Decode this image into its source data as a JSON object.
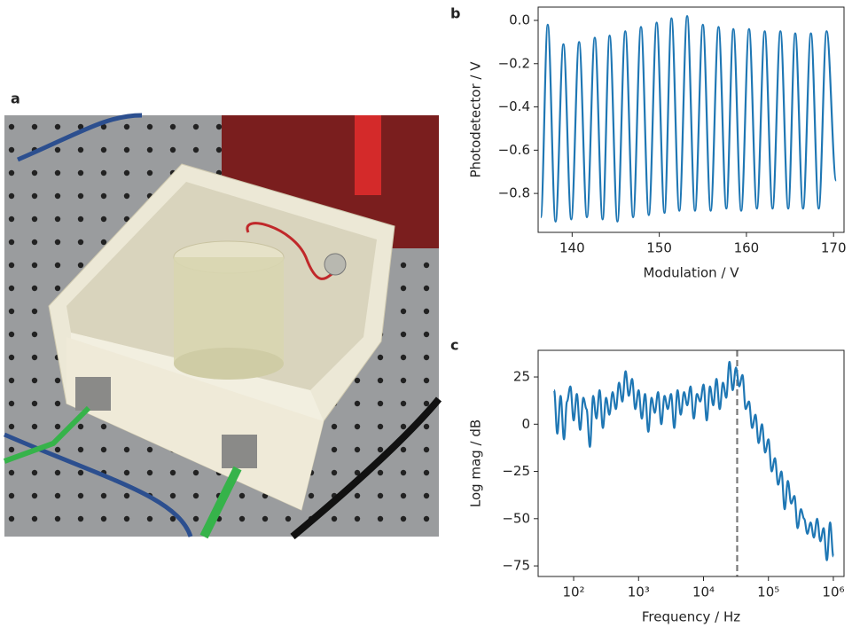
{
  "panel_labels": [
    "a",
    "b",
    "c"
  ],
  "chart_data": [
    {
      "type": "line",
      "xlabel": "Modulation / V",
      "ylabel": "Photodetector / V",
      "color": "#1f77b4",
      "x": [
        136.4,
        137.2,
        138.1,
        139.0,
        139.9,
        140.8,
        141.7,
        142.6,
        143.5,
        144.3,
        145.2,
        146.1,
        147.0,
        147.9,
        148.8,
        149.7,
        150.6,
        151.4,
        152.3,
        153.2,
        154.1,
        155.0,
        155.9,
        156.8,
        157.7,
        158.5,
        159.4,
        160.3,
        161.2,
        162.1,
        163.0,
        163.9,
        164.8,
        165.6,
        166.5,
        167.4,
        168.3,
        169.2,
        170.3
      ],
      "values": [
        -0.91,
        -0.02,
        -0.93,
        -0.11,
        -0.92,
        -0.1,
        -0.91,
        -0.08,
        -0.92,
        -0.07,
        -0.93,
        -0.05,
        -0.91,
        -0.03,
        -0.9,
        -0.01,
        -0.89,
        0.01,
        -0.88,
        0.02,
        -0.88,
        -0.02,
        -0.88,
        -0.03,
        -0.87,
        -0.04,
        -0.88,
        -0.04,
        -0.87,
        -0.05,
        -0.87,
        -0.05,
        -0.87,
        -0.06,
        -0.87,
        -0.06,
        -0.87,
        -0.05,
        -0.74
      ],
      "xlim": [
        136.1,
        171.2
      ],
      "ylim": [
        -0.98,
        0.0615
      ],
      "xticks": [
        140,
        150,
        160,
        170
      ],
      "yticks": [
        {
          "value": -0.8,
          "label": "−0.8"
        },
        {
          "value": -0.6,
          "label": "−0.6"
        },
        {
          "value": -0.4,
          "label": "−0.4"
        },
        {
          "value": -0.2,
          "label": "−0.2"
        },
        {
          "value": 0,
          "label": "0.0"
        }
      ]
    },
    {
      "type": "line",
      "xlabel": "Frequency / Hz",
      "ylabel": "Log mag / dB",
      "color": "#1f77b4",
      "xscale": "log",
      "x": [
        50,
        56,
        63,
        71,
        79,
        89,
        100,
        112,
        126,
        141,
        158,
        178,
        200,
        224,
        251,
        282,
        316,
        355,
        398,
        447,
        501,
        562,
        631,
        708,
        794,
        891,
        1000,
        1122,
        1259,
        1413,
        1585,
        1778,
        1995,
        2239,
        2512,
        2818,
        3162,
        3548,
        3981,
        4467,
        5012,
        5623,
        6310,
        7079,
        7943,
        8913,
        10000,
        11220,
        12589,
        14125,
        15849,
        17783,
        19953,
        22387,
        25119,
        28184,
        31623,
        35481,
        39811,
        44668,
        50119,
        56234,
        63096,
        70795,
        79433,
        89125,
        100000,
        112202,
        125893,
        141254,
        158489,
        177828,
        199526,
        223872,
        251189,
        281838,
        316228,
        354813,
        398107,
        446684,
        501187,
        562341,
        630957,
        707946,
        794328,
        891251,
        1000000
      ],
      "values": [
        18,
        -5,
        15,
        -8,
        12,
        20,
        2,
        16,
        -3,
        14,
        8,
        -12,
        15,
        3,
        18,
        -2,
        14,
        5,
        17,
        8,
        22,
        12,
        28,
        15,
        24,
        8,
        18,
        3,
        16,
        -4,
        14,
        6,
        17,
        0,
        15,
        8,
        16,
        -2,
        18,
        5,
        17,
        10,
        20,
        3,
        16,
        12,
        21,
        2,
        20,
        10,
        24,
        8,
        22,
        14,
        33,
        18,
        30,
        20,
        26,
        8,
        12,
        -2,
        5,
        -10,
        0,
        -15,
        -8,
        -25,
        -18,
        -32,
        -25,
        -45,
        -30,
        -42,
        -38,
        -55,
        -45,
        -50,
        -58,
        -52,
        -60,
        -50,
        -62,
        -55,
        -72,
        -52,
        -70
      ],
      "vline": 33000,
      "xlim": [
        28.4,
        1460000
      ],
      "ylim": [
        -80.6,
        39.1
      ],
      "xticks": [
        {
          "value": 100,
          "label": "10²"
        },
        {
          "value": 1000,
          "label": "10³"
        },
        {
          "value": 10000,
          "label": "10⁴"
        },
        {
          "value": 100000,
          "label": "10⁵"
        },
        {
          "value": 1000000,
          "label": "10⁶"
        }
      ],
      "yticks": [
        {
          "value": -75,
          "label": "−75"
        },
        {
          "value": -50,
          "label": "−50"
        },
        {
          "value": -25,
          "label": "−25"
        },
        0,
        25
      ]
    }
  ]
}
